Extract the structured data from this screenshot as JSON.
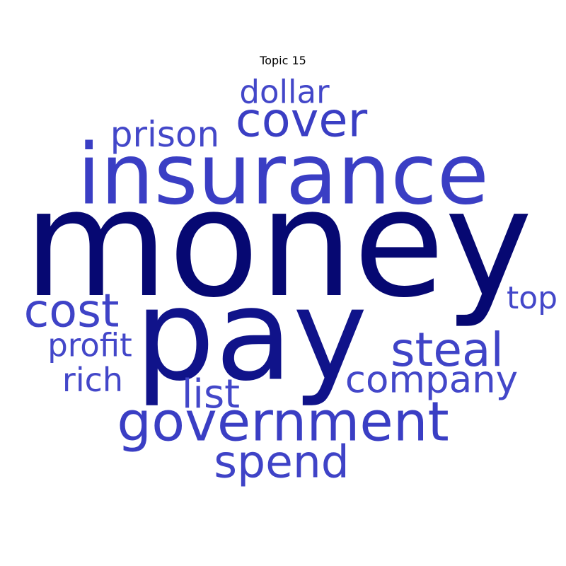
{
  "title": "Topic 15",
  "words": [
    {
      "id": "money",
      "text": "money",
      "color": "#060872"
    },
    {
      "id": "pay",
      "text": "pay",
      "color": "#10138a"
    },
    {
      "id": "insurance",
      "text": "insurance",
      "color": "#3a3ec4"
    },
    {
      "id": "government",
      "text": "government",
      "color": "#3a3ec4"
    },
    {
      "id": "cover",
      "text": "cover",
      "color": "#3a3ec4"
    },
    {
      "id": "steal",
      "text": "steal",
      "color": "#3f43c7"
    },
    {
      "id": "spend",
      "text": "spend",
      "color": "#3f43c7"
    },
    {
      "id": "cost",
      "text": "cost",
      "color": "#3f43c7"
    },
    {
      "id": "company",
      "text": "company",
      "color": "#4347c9"
    },
    {
      "id": "list",
      "text": "list",
      "color": "#4347c9"
    },
    {
      "id": "prison",
      "text": "prison",
      "color": "#4347c9"
    },
    {
      "id": "dollar",
      "text": "dollar",
      "color": "#4347c9"
    },
    {
      "id": "rich",
      "text": "rich",
      "color": "#4347c9"
    },
    {
      "id": "profit",
      "text": "profit",
      "color": "#4347c9"
    },
    {
      "id": "top",
      "text": "top",
      "color": "#4347c9"
    }
  ]
}
